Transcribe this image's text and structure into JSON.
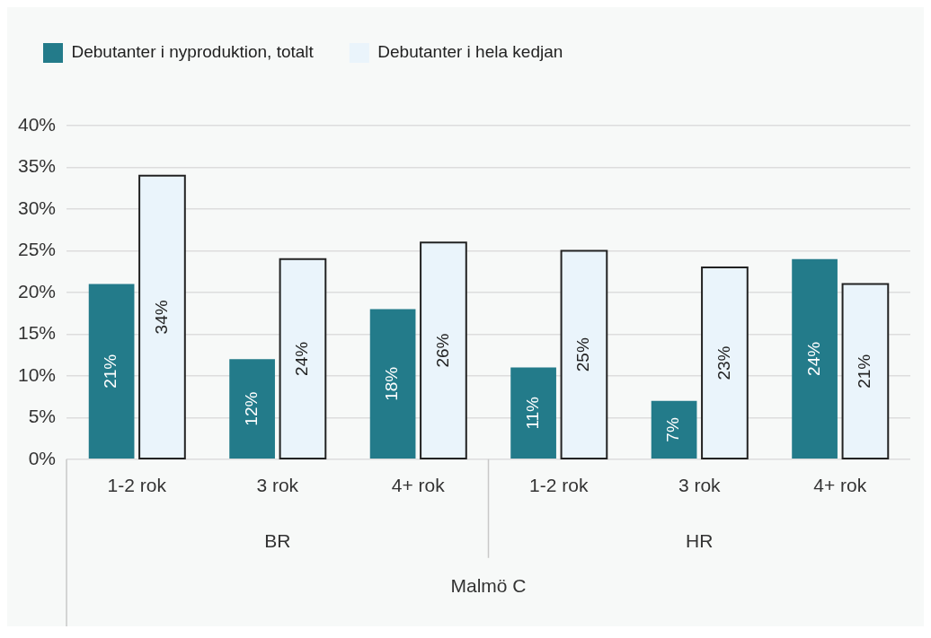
{
  "chart_data": {
    "type": "bar",
    "categories": [
      "1-2 rok",
      "3 rok",
      "4+ rok",
      "1-2 rok",
      "3 rok",
      "4+ rok"
    ],
    "series": [
      {
        "name": "Debutanter i nyproduktion, totalt",
        "color": "#237b8a",
        "values": [
          21,
          12,
          18,
          11,
          7,
          24
        ],
        "value_labels": [
          "21%",
          "12%",
          "18%",
          "11%",
          "7%",
          "24%"
        ]
      },
      {
        "name": "Debutanter i hela kedjan",
        "color": "#eaf4fb",
        "values": [
          34,
          24,
          26,
          25,
          23,
          21
        ],
        "value_labels": [
          "34%",
          "24%",
          "26%",
          "25%",
          "23%",
          "21%"
        ]
      }
    ],
    "ylim": [
      0,
      40
    ],
    "yticks": [
      {
        "value": 0,
        "label": "0%"
      },
      {
        "value": 5,
        "label": "5%"
      },
      {
        "value": 10,
        "label": "10%"
      },
      {
        "value": 15,
        "label": "15%"
      },
      {
        "value": 20,
        "label": "20%"
      },
      {
        "value": 25,
        "label": "25%"
      },
      {
        "value": 30,
        "label": "30%"
      },
      {
        "value": 35,
        "label": "35%"
      },
      {
        "value": 40,
        "label": "40%"
      }
    ],
    "grid": "y",
    "legend": "top left",
    "annotations": [
      "BR",
      "HR",
      "Malmö C"
    ]
  }
}
